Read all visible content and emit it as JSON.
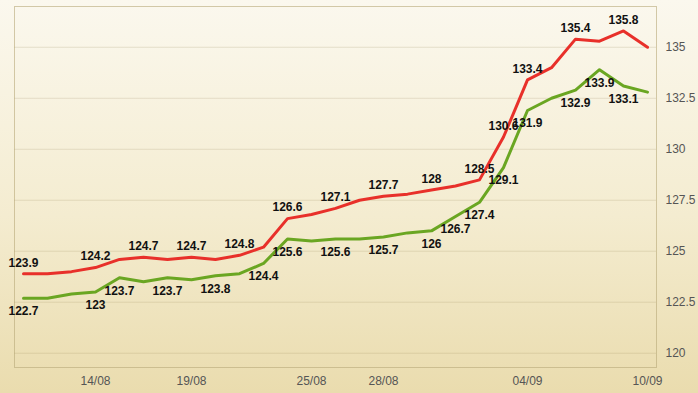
{
  "chart_data": {
    "type": "line",
    "categories": [
      null,
      null,
      null,
      "14/08",
      null,
      null,
      null,
      "19/08",
      null,
      null,
      null,
      null,
      "25/08",
      null,
      null,
      "28/08",
      null,
      null,
      null,
      null,
      null,
      "04/09",
      null,
      null,
      null,
      null,
      "10/09"
    ],
    "series": [
      {
        "color": "#e8302a",
        "values": [
          123.9,
          123.9,
          124.0,
          124.2,
          124.6,
          124.7,
          124.6,
          124.7,
          124.6,
          124.8,
          125.2,
          126.6,
          126.8,
          127.1,
          127.5,
          127.7,
          127.8,
          128,
          128.2,
          128.5,
          130.6,
          133.4,
          134.0,
          135.4,
          135.3,
          135.8,
          135.0
        ],
        "value_labels": [
          "123.9",
          null,
          null,
          "124.2",
          null,
          "124.7",
          null,
          "124.7",
          null,
          "124.8",
          null,
          "126.6",
          null,
          "127.1",
          null,
          "127.7",
          null,
          "128",
          null,
          "128.5",
          "130.6",
          "133.4",
          null,
          "135.4",
          null,
          "135.8",
          null
        ]
      },
      {
        "color": "#6aa622",
        "values": [
          122.7,
          122.7,
          122.9,
          123,
          123.7,
          123.5,
          123.7,
          123.6,
          123.8,
          123.9,
          124.4,
          125.6,
          125.5,
          125.6,
          125.6,
          125.7,
          125.9,
          126,
          126.7,
          127.4,
          129.1,
          131.9,
          132.5,
          132.9,
          133.9,
          133.1,
          132.8
        ],
        "value_labels": [
          "122.7",
          null,
          null,
          "123",
          "123.7",
          null,
          "123.7",
          null,
          "123.8",
          null,
          "124.4",
          "125.6",
          null,
          "125.6",
          null,
          "125.7",
          null,
          "126",
          "126.7",
          "127.4",
          "129.1",
          "131.9",
          null,
          "132.9",
          "133.9",
          "133.1",
          null
        ]
      }
    ],
    "ylim": [
      119.3,
      137.0
    ],
    "yticks": [
      120,
      {
        "value": 122.5,
        "label": "122.5"
      },
      125,
      {
        "value": 127.5,
        "label": "127.5"
      },
      130,
      {
        "value": 132.5,
        "label": "132.5"
      },
      135
    ],
    "grid": true,
    "data_labels": true
  }
}
